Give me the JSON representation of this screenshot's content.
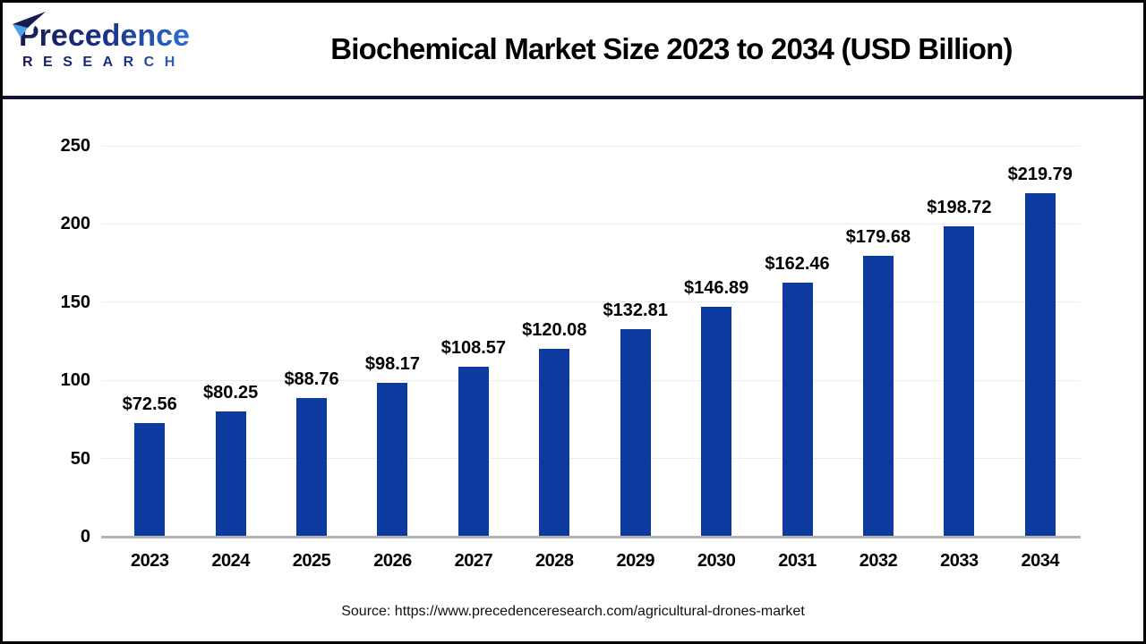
{
  "logo": {
    "brand_line1": "Precedence",
    "brand_line2": "R E S E A R C H",
    "brand_line2_plain": "RESEARCH",
    "colors": {
      "navy": "#151c52",
      "blue": "#2e7ae0",
      "plane_light": "#4fa0e8"
    }
  },
  "header": {
    "title": "Biochemical Market Size 2023 to 2034 (USD Billion)",
    "divider_color": "#10143c"
  },
  "chart_data": {
    "type": "bar",
    "title": "Biochemical Market Size 2023 to 2034 (USD Billion)",
    "categories": [
      "2023",
      "2024",
      "2025",
      "2026",
      "2027",
      "2028",
      "2029",
      "2030",
      "2031",
      "2032",
      "2033",
      "2034"
    ],
    "values": [
      72.56,
      80.25,
      88.76,
      98.17,
      108.57,
      120.08,
      132.81,
      146.89,
      162.46,
      179.68,
      198.72,
      219.79
    ],
    "value_labels": [
      "$72.56",
      "$80.25",
      "$88.76",
      "$98.17",
      "$108.57",
      "$120.08",
      "$132.81",
      "$146.89",
      "$162.46",
      "$179.68",
      "$198.72",
      "$219.79"
    ],
    "xlabel": "",
    "ylabel": "",
    "ylim": [
      0,
      250
    ],
    "yticks": [
      0,
      50,
      100,
      150,
      200,
      250
    ],
    "grid": true,
    "legend": "none",
    "bar_color": "#0c3a9e",
    "gridline_color": "#ededed",
    "axis_line_color": "#b3b3b3"
  },
  "footer": {
    "source": "Source: https://www.precedenceresearch.com/agricultural-drones-market"
  }
}
